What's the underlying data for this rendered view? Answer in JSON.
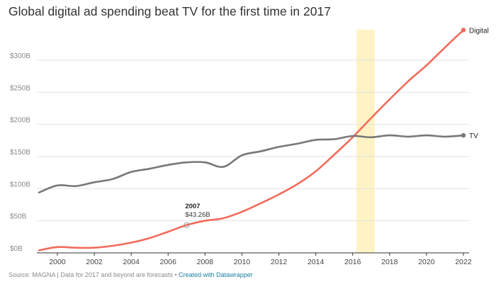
{
  "title": "Global digital ad spending beat TV for the first time in 2017",
  "footer": {
    "source": "Source: MAGNA | Data for 2017 and beyond are forecasts",
    "separator": "•",
    "link": "Created with Datawrapper"
  },
  "annotation": {
    "year": "2007",
    "value": "$43.26B",
    "x": 2007,
    "y": 43.26
  },
  "chart_data": {
    "type": "line",
    "title": "Global digital ad spending beat TV for the first time in 2017",
    "xlabel": "",
    "ylabel": "",
    "xlim": [
      1999,
      2022
    ],
    "ylim": [
      0,
      350
    ],
    "yticks": [
      0,
      50,
      100,
      150,
      200,
      250,
      300
    ],
    "ytick_labels": [
      "$0B",
      "$50B",
      "$100B",
      "$150B",
      "$200B",
      "$250B",
      "$300B"
    ],
    "xticks": [
      2000,
      2002,
      2004,
      2006,
      2008,
      2010,
      2012,
      2014,
      2016,
      2018,
      2020,
      2022
    ],
    "xtick_labels": [
      "2000",
      "2002",
      "2004",
      "2006",
      "2008",
      "2010",
      "2012",
      "2014",
      "2016",
      "2018",
      "2020",
      "2022"
    ],
    "grid": true,
    "highlight_band": {
      "x_from": 2016.2,
      "x_to": 2017.2,
      "color": "#fdf3c5"
    },
    "series": [
      {
        "name": "Digital",
        "color": "#f26b5b",
        "x": [
          1999,
          2000,
          2001,
          2002,
          2003,
          2004,
          2005,
          2006,
          2007,
          2008,
          2009,
          2010,
          2011,
          2012,
          2013,
          2014,
          2015,
          2016,
          2017,
          2018,
          2019,
          2020,
          2021,
          2022
        ],
        "values": [
          4,
          9,
          8,
          8,
          11,
          16,
          23,
          33,
          43.26,
          50,
          54,
          64,
          77,
          91,
          107,
          127,
          153,
          180,
          210,
          239,
          267,
          292,
          320,
          347
        ]
      },
      {
        "name": "TV",
        "color": "#777777",
        "x": [
          1999,
          2000,
          2001,
          2002,
          2003,
          2004,
          2005,
          2006,
          2007,
          2008,
          2009,
          2010,
          2011,
          2012,
          2013,
          2014,
          2015,
          2016,
          2017,
          2018,
          2019,
          2020,
          2021,
          2022
        ],
        "values": [
          94,
          105,
          104,
          110,
          115,
          126,
          131,
          137,
          141,
          141,
          134,
          152,
          158,
          165,
          170,
          176,
          177,
          182,
          180,
          183,
          181,
          183,
          181,
          183
        ]
      }
    ]
  }
}
